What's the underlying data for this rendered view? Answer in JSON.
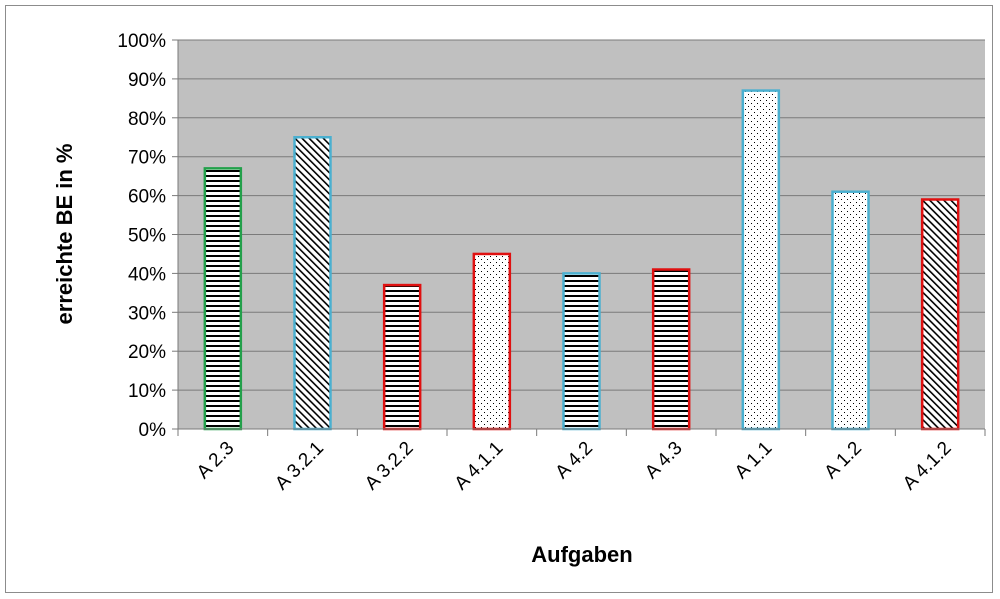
{
  "chart_data": {
    "type": "bar",
    "title": "",
    "xlabel": "Aufgaben",
    "ylabel": "erreichte BE in %",
    "ylim": [
      0,
      100
    ],
    "yticks": [
      "0%",
      "10%",
      "20%",
      "30%",
      "40%",
      "50%",
      "60%",
      "70%",
      "80%",
      "90%",
      "100%"
    ],
    "grid": true,
    "plot_background": "#c0c0c0",
    "categories": [
      "A 2.3",
      "A 3.2.1",
      "A 3.2.2",
      "A 4.1.1",
      "A 4.2",
      "A 4.3",
      "A 1.1",
      "A 1.2",
      "A 4.1.2"
    ],
    "values": [
      67,
      75,
      37,
      45,
      40,
      41,
      87,
      61,
      59
    ],
    "bar_styles": [
      {
        "border": "#22a04a",
        "pattern": "horizontal-lines"
      },
      {
        "border": "#4ab0d0",
        "pattern": "diagonal-lines"
      },
      {
        "border": "#e01010",
        "pattern": "horizontal-lines"
      },
      {
        "border": "#e01010",
        "pattern": "dots"
      },
      {
        "border": "#4ab0d0",
        "pattern": "horizontal-lines"
      },
      {
        "border": "#e01010",
        "pattern": "horizontal-lines"
      },
      {
        "border": "#4ab0d0",
        "pattern": "dots"
      },
      {
        "border": "#4ab0d0",
        "pattern": "dots"
      },
      {
        "border": "#e01010",
        "pattern": "diagonal-lines"
      }
    ]
  }
}
